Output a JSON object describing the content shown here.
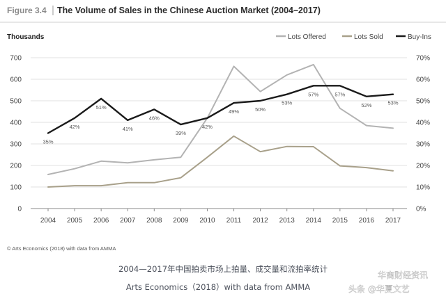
{
  "figure": {
    "label": "Figure 3.4",
    "title": "The Volume of Sales in the Chinese Auction Market (2004–2017)",
    "units": "Thousands",
    "source": "© Arts Economics (2018) with data from AMMA"
  },
  "caption": {
    "line1": "2004—2017年中国拍卖市场上拍量、成交量和流拍率统计",
    "line2": "Arts Economics（2018）with data from AMMA"
  },
  "watermark": {
    "text1": "华商财经资讯",
    "text2": "头条 @华夏文艺"
  },
  "colors": {
    "lots_offered": "#b3b3b3",
    "lots_sold": "#a8a08a",
    "buy_ins": "#1a1a1a",
    "grid": "#e2e2e2"
  },
  "chart_data": {
    "type": "line",
    "title": "The Volume of Sales in the Chinese Auction Market (2004–2017)",
    "ylabel": "Thousands",
    "x": [
      "2004",
      "2005",
      "2006",
      "2007",
      "2008",
      "2009",
      "2010",
      "2011",
      "2012",
      "2013",
      "2014",
      "2015",
      "2016",
      "2017"
    ],
    "ylim": [
      0,
      700
    ],
    "y_ticks": [
      "0",
      "100",
      "200",
      "300",
      "400",
      "500",
      "600",
      "700"
    ],
    "y2lim": [
      0,
      70
    ],
    "y2_ticks": [
      "0%",
      "10%",
      "20%",
      "30%",
      "40%",
      "50%",
      "60%",
      "70%"
    ],
    "legend_position": "top-right",
    "grid": true,
    "series": [
      {
        "name": "Lots Offered",
        "axis": "left",
        "values": [
          158,
          185,
          220,
          212,
          226,
          238,
          420,
          660,
          543,
          620,
          668,
          465,
          385,
          373
        ]
      },
      {
        "name": "Lots Sold",
        "axis": "left",
        "values": [
          100,
          106,
          106,
          120,
          120,
          143,
          238,
          336,
          264,
          288,
          287,
          198,
          190,
          175
        ]
      },
      {
        "name": "Buy-Ins",
        "axis": "right",
        "values": [
          35,
          42,
          51,
          41,
          46,
          39,
          42,
          49,
          50,
          53,
          57,
          57,
          52,
          53
        ],
        "labels": [
          "35%",
          "42%",
          "51%",
          "41%",
          "46%",
          "39%",
          "42%",
          "49%",
          "50%",
          "53%",
          "57%",
          "57%",
          "52%",
          "53%"
        ]
      }
    ]
  }
}
